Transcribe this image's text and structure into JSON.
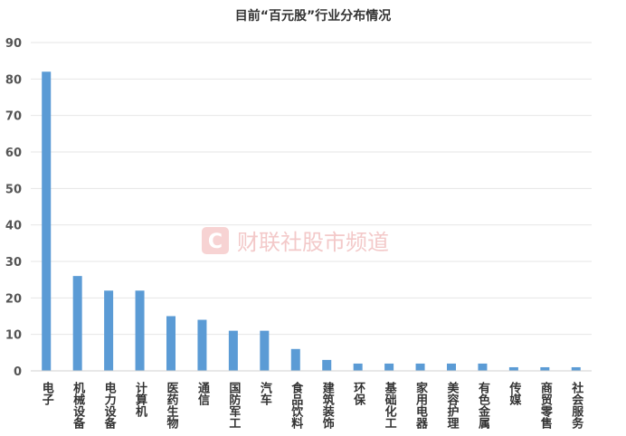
{
  "chart_data": {
    "type": "bar",
    "title": "目前“百元股”行业分布情况",
    "xlabel": "",
    "ylabel": "",
    "ylim": [
      0,
      90
    ],
    "yticks": [
      0,
      10,
      20,
      30,
      40,
      50,
      60,
      70,
      80,
      90
    ],
    "grid": true,
    "legend": "none",
    "categories": [
      "电子",
      "机械设备",
      "电力设备",
      "计算机",
      "医药生物",
      "通信",
      "国防军工",
      "汽车",
      "食品饮料",
      "建筑装饰",
      "环保",
      "基础化工",
      "家用电器",
      "美容护理",
      "有色金属",
      "传媒",
      "商贸零售",
      "社会服务"
    ],
    "values": [
      82,
      26,
      22,
      22,
      15,
      14,
      11,
      11,
      6,
      3,
      2,
      2,
      2,
      2,
      2,
      1,
      1,
      1
    ],
    "bar_color": "#5b9bd5"
  },
  "watermark": {
    "text": "财联社股市频道",
    "logo_color": "#f2bcbc"
  }
}
